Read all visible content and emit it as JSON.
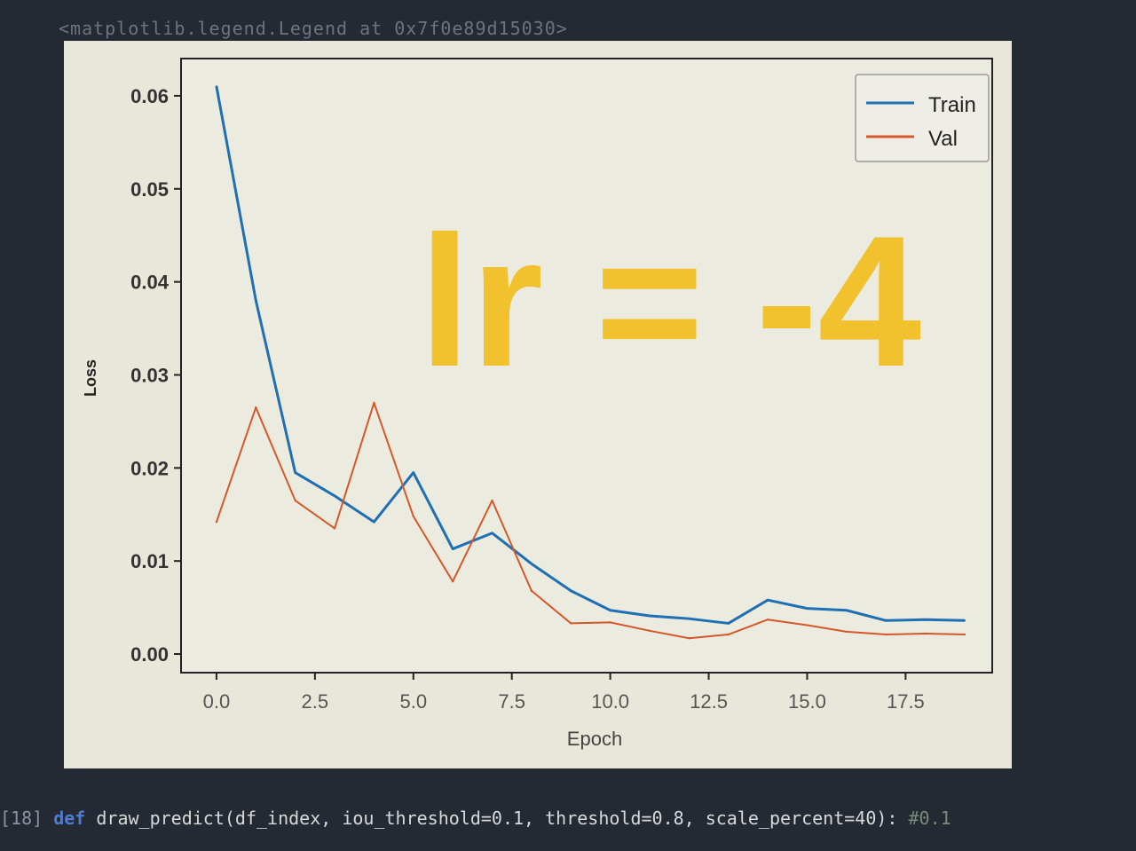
{
  "output_header": "<matplotlib.legend.Legend at 0x7f0e89d15030>",
  "code_cell": {
    "prompt": "[18]",
    "keyword": "def",
    "signature": "draw_predict(df_index, iou_threshold=0.1, threshold=0.8, scale_percent=40):",
    "comment": "#0.1"
  },
  "annotation": {
    "text": "lr = -4",
    "color": "#f2c12e"
  },
  "colors": {
    "train": "#1f6fb4",
    "val": "#d4582a",
    "figure_bg": "#e9e7d9",
    "page_bg": "#232a33"
  },
  "chart_data": {
    "type": "line",
    "title": "",
    "xlabel": "Epoch",
    "ylabel": "Loss",
    "xlim": [
      -0.9,
      19.7
    ],
    "ylim": [
      -0.002,
      0.064
    ],
    "xticks": [
      "0.0",
      "2.5",
      "5.0",
      "7.5",
      "10.0",
      "12.5",
      "15.0",
      "17.5"
    ],
    "yticks": [
      "0.00",
      "0.01",
      "0.02",
      "0.03",
      "0.04",
      "0.05",
      "0.06"
    ],
    "legend_position": "top-right",
    "grid": false,
    "x": [
      0,
      1,
      2,
      3,
      4,
      5,
      6,
      7,
      8,
      9,
      10,
      11,
      12,
      13,
      14,
      15,
      16,
      17,
      18,
      19
    ],
    "series": [
      {
        "name": "Train",
        "color": "#1f6fb4",
        "values": [
          0.061,
          0.038,
          0.0195,
          0.017,
          0.0142,
          0.0195,
          0.0113,
          0.013,
          0.0097,
          0.0068,
          0.0047,
          0.0041,
          0.0038,
          0.0033,
          0.0058,
          0.0049,
          0.0047,
          0.0036,
          0.0037,
          0.0036
        ]
      },
      {
        "name": "Val",
        "color": "#d4582a",
        "values": [
          0.0142,
          0.0265,
          0.0165,
          0.0135,
          0.027,
          0.0148,
          0.0078,
          0.0165,
          0.0068,
          0.0033,
          0.0034,
          0.0025,
          0.0017,
          0.0021,
          0.0037,
          0.0031,
          0.0024,
          0.0021,
          0.0022,
          0.0021
        ]
      }
    ]
  }
}
